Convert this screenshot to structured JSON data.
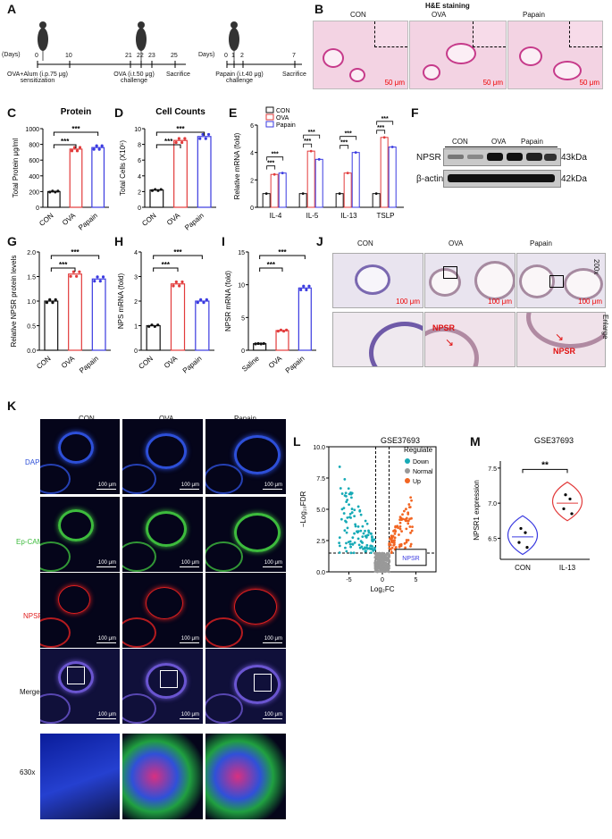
{
  "panel_letters": [
    "A",
    "B",
    "C",
    "D",
    "E",
    "F",
    "G",
    "H",
    "I",
    "J",
    "K",
    "L",
    "M"
  ],
  "A": {
    "days1": "(Days)",
    "t1": [
      "0",
      "10",
      "21",
      "22",
      "23",
      "25"
    ],
    "cap1a": "OVA+Alum",
    "cap1b": "(i.p.75 μg)",
    "cap1c": "sensitization",
    "cap1d": "OVA",
    "cap1e": "(i.t.50 μg)",
    "cap1f": "challenge",
    "cap1g": "Sacrifice",
    "days2": "Days)",
    "t2": [
      "0",
      "1",
      "2",
      "7"
    ],
    "cap2a": "Papain",
    "cap2b": "(i.t.40 μg)",
    "cap2c": "challenge",
    "cap2d": "Sacrifice"
  },
  "B": {
    "title": "H&E staining",
    "labels": [
      "CON",
      "OVA",
      "Papain"
    ],
    "scale": "50 μm"
  },
  "F": {
    "groups": [
      "CON",
      "OVA",
      "Papain"
    ],
    "rows": [
      "NPSR",
      "β-actin"
    ],
    "sizes": [
      "43kDa",
      "42kDa"
    ]
  },
  "J": {
    "labels": [
      "CON",
      "OVA",
      "Papain"
    ],
    "right": [
      "200x",
      "Enlarge"
    ],
    "scale": "100 μm",
    "arrow": "NPSR"
  },
  "K": {
    "cols": [
      "CON",
      "OVA",
      "Papain"
    ],
    "rows": [
      "DAPI",
      "Ep-CAM",
      "NPSR",
      "Merge",
      "630x"
    ],
    "scale": "100 μm"
  },
  "colors": {
    "con": "#111111",
    "ova": "#e23b3b",
    "papain": "#3a3ae0",
    "down": "#17aab6",
    "normal": "#999999",
    "up": "#f26522",
    "dapi": "#2d4fd8",
    "epcam": "#3dbb3d",
    "npsr": "#e02020"
  },
  "chart_data": [
    {
      "panel": "C",
      "type": "bar",
      "title": "Protein",
      "ylabel": "Total Protein μg/ml",
      "ylim": [
        0,
        1000
      ],
      "yticks": [
        "0",
        "200",
        "400",
        "600",
        "800",
        "1000"
      ],
      "categories": [
        "CON",
        "OVA",
        "Papain"
      ],
      "values": [
        200,
        740,
        760
      ],
      "sig": [
        "***",
        "***"
      ]
    },
    {
      "panel": "D",
      "type": "bar",
      "title": "Cell Counts",
      "ylabel": "Total Cells (X10⁵)",
      "ylim": [
        0,
        10
      ],
      "yticks": [
        "0",
        "2",
        "4",
        "6",
        "8",
        "10"
      ],
      "categories": [
        "CON",
        "OVA",
        "Papain"
      ],
      "values": [
        2.2,
        8.5,
        9.0
      ],
      "sig": [
        "***",
        "***"
      ]
    },
    {
      "panel": "E",
      "type": "bar",
      "ylabel": "Relative mRNA (fold)",
      "ylim": [
        0,
        6
      ],
      "yticks": [
        "0",
        "2",
        "4",
        "6"
      ],
      "categories": [
        "IL-4",
        "IL-5",
        "IL-13",
        "TSLP"
      ],
      "legend": [
        "CON",
        "OVA",
        "Papain"
      ],
      "series": [
        {
          "name": "CON",
          "values": [
            1.0,
            1.0,
            1.0,
            1.0
          ]
        },
        {
          "name": "OVA",
          "values": [
            2.4,
            4.1,
            2.5,
            5.1
          ]
        },
        {
          "name": "Papain",
          "values": [
            2.5,
            3.5,
            4.0,
            4.4
          ]
        }
      ],
      "sig": [
        "***"
      ]
    },
    {
      "panel": "G",
      "type": "bar",
      "ylabel": "Relative NPSR protein levels",
      "ylim": [
        0,
        2.0
      ],
      "yticks": [
        "0.0",
        "0.5",
        "1.0",
        "1.5",
        "2.0"
      ],
      "categories": [
        "CON",
        "OVA",
        "Papain"
      ],
      "values": [
        1.0,
        1.55,
        1.45
      ],
      "sig": [
        "***",
        "***"
      ]
    },
    {
      "panel": "H",
      "type": "bar",
      "ylabel": "NPS mRNA (fold)",
      "ylim": [
        0,
        4
      ],
      "yticks": [
        "0",
        "1",
        "2",
        "3",
        "4"
      ],
      "categories": [
        "CON",
        "OVA",
        "Papain"
      ],
      "values": [
        1.0,
        2.7,
        2.0
      ],
      "sig": [
        "***",
        "***"
      ]
    },
    {
      "panel": "I",
      "type": "bar",
      "ylabel": "NPSR mRNA (fold)",
      "ylim": [
        0,
        15
      ],
      "yticks": [
        "0",
        "5",
        "10",
        "15"
      ],
      "categories": [
        "Saline",
        "OVA",
        "Papain"
      ],
      "values": [
        1.0,
        3.0,
        9.5
      ],
      "sig": [
        "***",
        "***"
      ]
    },
    {
      "panel": "L",
      "type": "scatter",
      "title": "GSE37693",
      "xlabel": "Log₂FC",
      "ylabel": "−Log₁₀FDR",
      "xlim": [
        -8,
        8
      ],
      "ylim": [
        0,
        10
      ],
      "xticks": [
        "-5",
        "0",
        "5"
      ],
      "yticks": [
        "0.0",
        "2.5",
        "5.0",
        "7.5",
        "10.0"
      ],
      "legend_title": "Regulate",
      "legend": [
        "Down",
        "Normal",
        "Up"
      ],
      "annotation": "NPSR"
    },
    {
      "panel": "M",
      "type": "violin",
      "title": "GSE37693",
      "ylabel": "NPSR1 expression",
      "ylim": [
        6.2,
        7.6
      ],
      "yticks": [
        "6.5",
        "7.0",
        "7.5"
      ],
      "categories": [
        "CON",
        "IL-13"
      ],
      "values": [
        6.52,
        7.0
      ],
      "sig": [
        "**"
      ]
    }
  ]
}
